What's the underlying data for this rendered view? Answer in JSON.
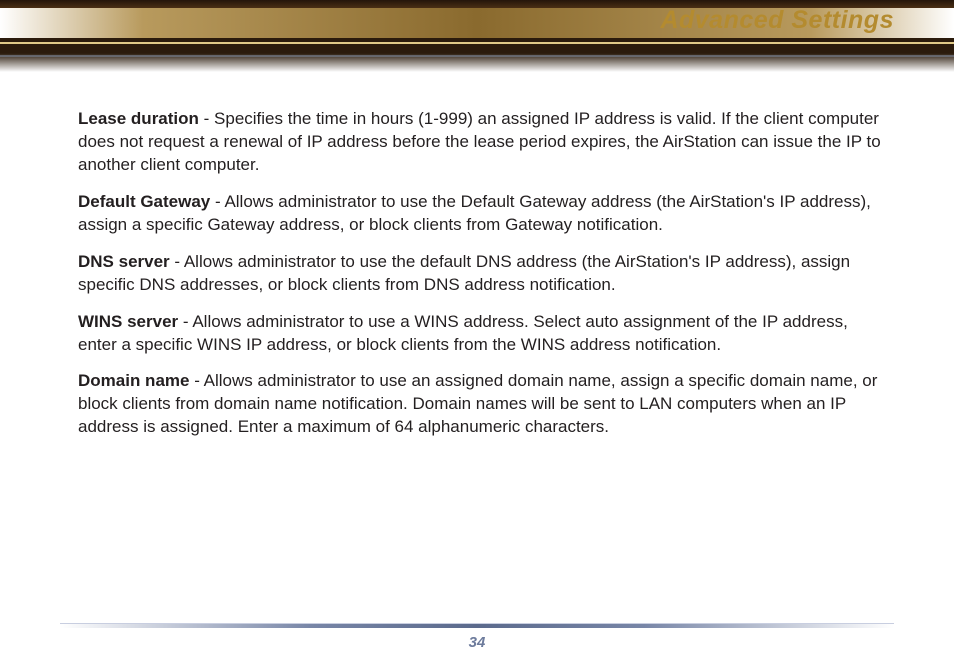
{
  "header": {
    "title": "Advanced Settings",
    "title_color": "#b48b2f"
  },
  "body": {
    "text_color": "#231f20",
    "paragraphs": [
      {
        "term": "Lease duration",
        "desc": " - Specifies the time in hours (1-999) an assigned IP address is valid. If the client computer does not request a renewal of IP address before the lease period expires, the AirStation can issue the IP to another client computer."
      },
      {
        "term": "Default Gateway ",
        "desc": " - Allows administrator to use the Default Gateway address (the AirStation's IP address), assign a specific Gateway address, or block clients from Gateway notification."
      },
      {
        "term": "DNS server",
        "desc": " - Allows administrator to use the default DNS address (the AirStation's IP address), assign specific DNS addresses, or block clients from DNS address notification."
      },
      {
        "term": "WINS server",
        "desc": " - Allows administrator to use a WINS address.  Select auto assignment of the IP address, enter a specific WINS IP address, or block clients from the WINS address notification."
      },
      {
        "term": "Domain name",
        "desc": " - Allows administrator to use an assigned domain name, assign a specific domain name, or block clients from domain name notification.  Domain names will be sent to LAN computers when an IP address is assigned.  Enter a maximum of 64 alphanumeric characters."
      }
    ]
  },
  "footer": {
    "page_number": "34",
    "number_color": "#6d7b9c"
  },
  "style": {
    "background": "#ffffff",
    "strip_gold_gradient": [
      "#ffffff",
      "#b89a5d",
      "#8a6a2e",
      "#b89a5d",
      "#ffffff"
    ],
    "strip_dark": "#2b1b0c",
    "footer_line_gradient": [
      "#ffffff",
      "#7886a7",
      "#5b6a8c",
      "#7886a7",
      "#ffffff"
    ],
    "font_size_body": 17,
    "font_size_title": 25
  }
}
